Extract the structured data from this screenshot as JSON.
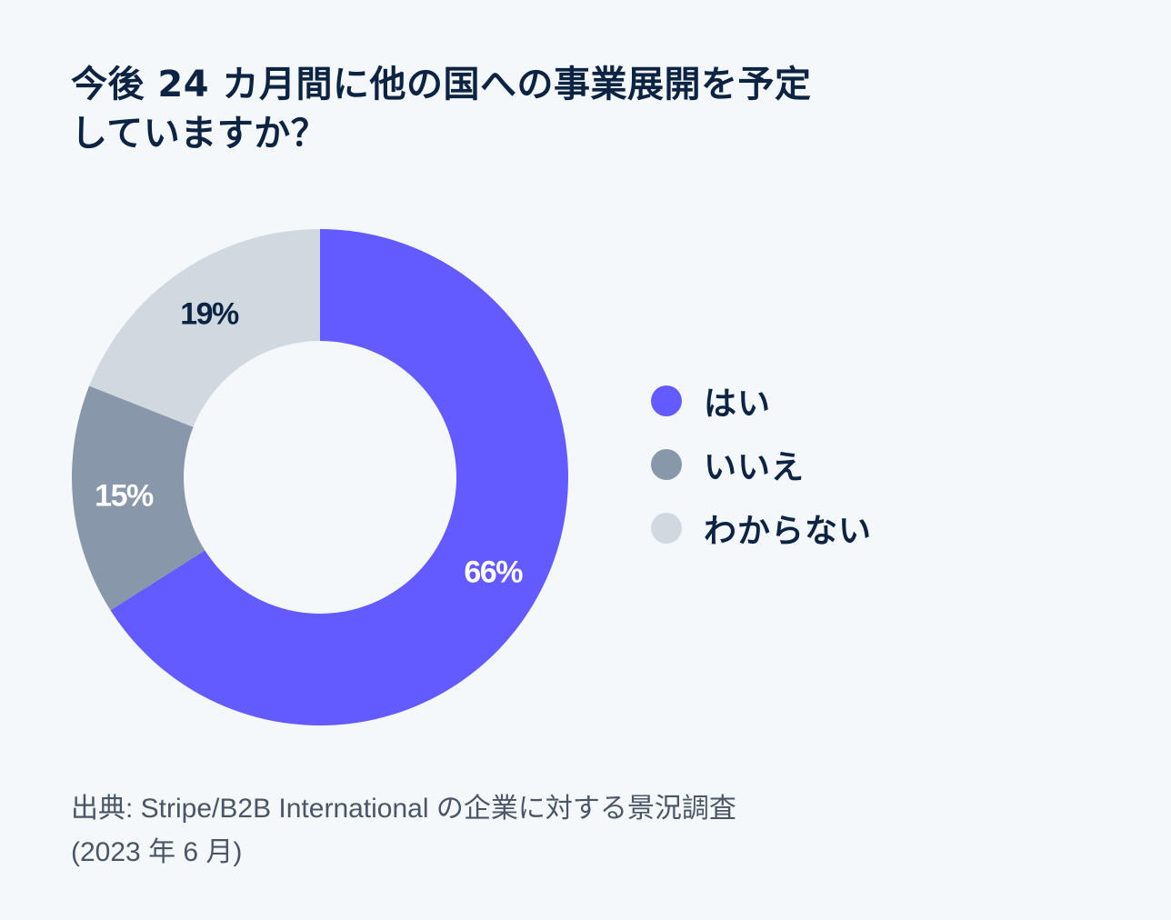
{
  "title": {
    "line1": "今後 24 カ月間に他の国への事業展開を予定",
    "line2": "していますか？"
  },
  "chart_data": {
    "type": "pie",
    "variant": "donut",
    "categories": [
      "はい",
      "いいえ",
      "わからない"
    ],
    "values": [
      66,
      15,
      19
    ],
    "unit": "%",
    "data_labels": [
      "66%",
      "15%",
      "19%"
    ],
    "colors": [
      "#635bff",
      "#8898aa",
      "#d0d8e0"
    ],
    "label_colors": [
      "#ffffff",
      "#ffffff",
      "#0d2342"
    ],
    "legend_position": "right"
  },
  "legend": {
    "items": [
      {
        "label": "はい",
        "color": "#635bff"
      },
      {
        "label": "いいえ",
        "color": "#8898aa"
      },
      {
        "label": "わからない",
        "color": "#d0d8e0"
      }
    ]
  },
  "source": {
    "line1": "出典: Stripe/B2B International の企業に対する景況調査",
    "line2": "(2023 年 6 月)"
  }
}
